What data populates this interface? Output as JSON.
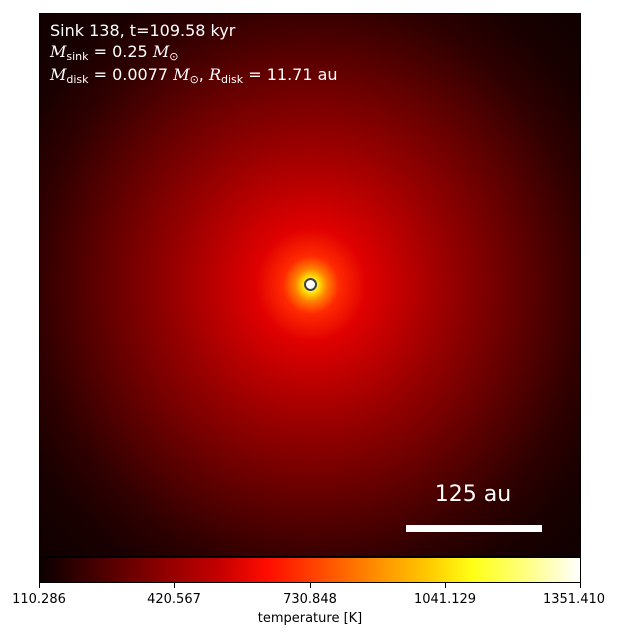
{
  "annotations": {
    "title": "Sink 138, t=109.58 kyr",
    "sink_mass_symbol": "M",
    "sink_mass_sub": "sink",
    "sink_mass_text": " = 0.25 ",
    "sink_mass_unit_symbol": "M",
    "sink_mass_unit_sub": "⊙",
    "disk_mass_symbol": "M",
    "disk_mass_sub": "disk",
    "disk_mass_text": " = 0.0077 ",
    "disk_mass_unit_symbol": "M",
    "disk_mass_unit_sub": "⊙",
    "disk_radius_prefix": ", ",
    "disk_radius_symbol": "R",
    "disk_radius_sub": "disk",
    "disk_radius_text": " = 11.71 au"
  },
  "scale_bar": {
    "label": "125 au",
    "length_au": 125
  },
  "colorbar": {
    "label": "temperature [K]",
    "colormap": "hot",
    "min": 110.286,
    "max": 1351.41,
    "ticks": [
      "110.286",
      "420.567",
      "730.848",
      "1041.129",
      "1351.410"
    ]
  },
  "colors": {
    "marker_fill": "#ffffff",
    "marker_edge": "#404040",
    "annotation_text": "#ffffff"
  }
}
